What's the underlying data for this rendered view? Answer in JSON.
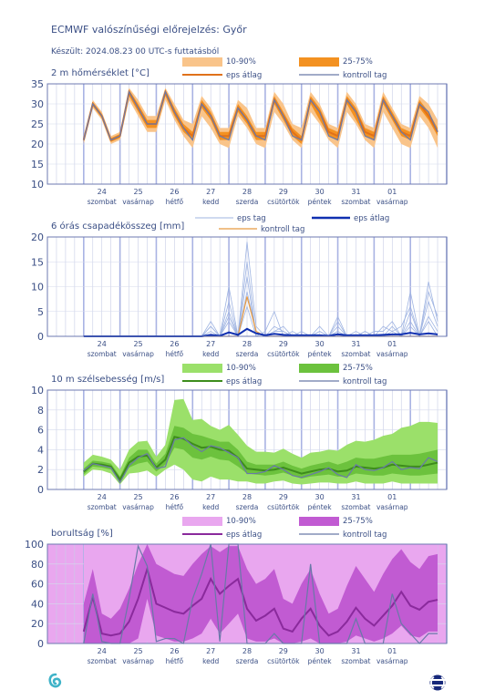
{
  "header": {
    "title": "ECMWF valószínűségi előrejelzés: Győr",
    "subtitle": "Készült: 2024.08.23 00 UTC-s futtatásból"
  },
  "x_axis": {
    "days": [
      "24",
      "25",
      "26",
      "27",
      "28",
      "29",
      "30",
      "31",
      "01"
    ],
    "weekdays": [
      "szombat",
      "vasárnap",
      "hétfő",
      "kedd",
      "szerda",
      "csütörtök",
      "péntek",
      "szombat",
      "vasárnap"
    ]
  },
  "colors": {
    "temp_band_outer": "#f9c48a",
    "temp_band_inner": "#f39121",
    "temp_mean": "#e0711a",
    "control": "#6979a8",
    "precip_member": "#9fb4e2",
    "precip_mean": "#1030b0",
    "precip_control": "#e89a40",
    "wind_band_outer": "#9be06a",
    "wind_band_inner": "#6cc23d",
    "wind_mean": "#3d8c1c",
    "cloud_band_outer": "#e9a7ef",
    "cloud_band_inner": "#c15bd2",
    "cloud_mean": "#8a2a9c",
    "axis_text": "#3b4f85",
    "grid": "#c7cde6"
  },
  "chart_data": [
    {
      "type": "area",
      "title": "2 m hőmérséklet [°C]",
      "ylim": [
        10,
        35
      ],
      "yticks": [
        10,
        15,
        20,
        25,
        30,
        35
      ],
      "legend": {
        "p10_90": "10-90%",
        "p25_75": "25-75%",
        "mean": "eps átlag",
        "control": "kontroll tag"
      },
      "x_hours": [
        0,
        6,
        12,
        18,
        24,
        30,
        36,
        42,
        48,
        54,
        60,
        66,
        72,
        78,
        84,
        90,
        96,
        102,
        108,
        114,
        120,
        126,
        132,
        138,
        144,
        150,
        156,
        162,
        168,
        174,
        180,
        186,
        192,
        198,
        204,
        210,
        216,
        222,
        228,
        234
      ],
      "mean": [
        21,
        30,
        27,
        21,
        22,
        33,
        29,
        25,
        25,
        33,
        28,
        24,
        22,
        30,
        27,
        22,
        22,
        29,
        26,
        22,
        22,
        31,
        27,
        23,
        21,
        31,
        28,
        23,
        22,
        31,
        28,
        23,
        22,
        31,
        27,
        23,
        22,
        30,
        27,
        23
      ],
      "p10": [
        20,
        29,
        26,
        20,
        21,
        31,
        27,
        23,
        23,
        31,
        26,
        22,
        19,
        27,
        24,
        20,
        19,
        27,
        24,
        20,
        19,
        28,
        25,
        21,
        19,
        28,
        25,
        21,
        19,
        28,
        25,
        21,
        19,
        28,
        24,
        20,
        19,
        27,
        24,
        19
      ],
      "p90": [
        22,
        31,
        28,
        22,
        23,
        34,
        31,
        27,
        27,
        34,
        30,
        26,
        25,
        32,
        29,
        24,
        24,
        31,
        29,
        24,
        24,
        33,
        30,
        25,
        24,
        33,
        30,
        25,
        24,
        33,
        30,
        25,
        24,
        33,
        29,
        25,
        24,
        32,
        30,
        26
      ],
      "p25": [
        20.5,
        29.5,
        26.5,
        20.5,
        21.5,
        32,
        28,
        24,
        24,
        32,
        27,
        23,
        21,
        29,
        26,
        21,
        21,
        28,
        25,
        21,
        21,
        30,
        26,
        22,
        20,
        30,
        26,
        22,
        21,
        30,
        26,
        22,
        21,
        30,
        26,
        22,
        21,
        29,
        26,
        22
      ],
      "p75": [
        21.5,
        30.5,
        27.5,
        21.5,
        22.5,
        33.5,
        30,
        26,
        26,
        33.5,
        29,
        25,
        23,
        31,
        28,
        23,
        23,
        30,
        27,
        23,
        23,
        32,
        28,
        24,
        22,
        32,
        29,
        24,
        23,
        32,
        29,
        24,
        23,
        32,
        28,
        24,
        23,
        31,
        28,
        24
      ],
      "control": [
        21,
        30,
        27,
        21,
        22,
        33,
        29,
        25,
        25,
        33,
        28,
        24,
        21,
        30,
        27,
        22,
        21,
        29,
        26,
        22,
        21,
        31,
        27,
        22,
        21,
        31,
        28,
        22,
        21,
        31,
        28,
        22,
        21,
        31,
        27,
        23,
        21,
        30,
        28,
        23
      ]
    },
    {
      "type": "line",
      "title": "6 órás csapadékösszeg [mm]",
      "ylim": [
        0,
        20
      ],
      "yticks": [
        0,
        5,
        10,
        15,
        20
      ],
      "legend": {
        "member": "eps tag",
        "mean": "eps átlag",
        "control": "kontroll tag"
      },
      "x_hours": [
        0,
        6,
        12,
        18,
        24,
        30,
        36,
        42,
        48,
        54,
        60,
        66,
        72,
        78,
        84,
        90,
        96,
        102,
        108,
        114,
        120,
        126,
        132,
        138,
        144,
        150,
        156,
        162,
        168,
        174,
        180,
        186,
        192,
        198,
        204,
        210,
        216,
        222,
        228,
        234
      ],
      "members": [
        [
          0,
          0,
          0,
          0,
          0,
          0,
          0,
          0,
          0,
          0,
          0,
          0,
          0,
          0,
          2,
          0,
          5,
          0,
          19,
          2,
          0,
          1,
          2,
          0,
          0,
          0,
          0,
          0,
          3,
          0,
          0,
          1,
          0,
          2,
          1,
          2,
          6,
          0,
          11,
          3
        ],
        [
          0,
          0,
          0,
          0,
          0,
          0,
          0,
          0,
          0,
          0,
          0,
          0,
          0,
          0,
          3,
          0,
          10,
          0,
          15,
          0,
          1,
          5,
          0,
          0,
          1,
          0,
          1,
          0,
          1,
          0,
          0,
          0,
          0,
          0,
          2,
          0,
          9,
          0,
          7,
          2
        ],
        [
          0,
          0,
          0,
          0,
          0,
          0,
          0,
          0,
          0,
          0,
          0,
          0,
          0,
          0,
          1,
          0,
          7,
          0,
          12,
          0,
          0,
          2,
          1,
          0,
          0,
          0,
          2,
          0,
          4,
          0,
          1,
          0,
          1,
          1,
          3,
          0,
          3,
          0,
          9,
          4
        ],
        [
          0,
          0,
          0,
          0,
          0,
          0,
          0,
          0,
          0,
          0,
          0,
          0,
          0,
          0,
          0,
          0,
          3,
          0,
          9,
          1,
          0,
          0,
          0,
          1,
          0,
          0,
          0,
          0,
          2,
          0,
          0,
          0,
          0,
          0,
          1,
          0,
          5,
          0,
          4,
          1
        ],
        [
          0,
          0,
          0,
          0,
          0,
          0,
          0,
          0,
          0,
          0,
          0,
          0,
          0,
          0,
          2,
          0,
          4,
          0,
          6,
          0,
          0,
          1,
          1,
          0,
          0,
          0,
          1,
          0,
          1,
          0,
          0,
          1,
          0,
          0,
          0,
          0,
          2,
          0,
          3,
          0
        ]
      ],
      "mean": [
        0,
        0,
        0,
        0,
        0,
        0,
        0,
        0,
        0,
        0,
        0,
        0,
        0,
        0,
        0.3,
        0.1,
        0.8,
        0.3,
        1.5,
        0.6,
        0.2,
        0.5,
        0.3,
        0.2,
        0.2,
        0.2,
        0.2,
        0.1,
        0.4,
        0.2,
        0.2,
        0.2,
        0.2,
        0.3,
        0.4,
        0.4,
        0.7,
        0.4,
        0.6,
        0.4
      ],
      "control": [
        0,
        0,
        0,
        0,
        0,
        0,
        0,
        0,
        0,
        0,
        0,
        0,
        0,
        0,
        0,
        0,
        0,
        0,
        8,
        1,
        0,
        0,
        0,
        0,
        0,
        0,
        0,
        0,
        0,
        0,
        0,
        0,
        0,
        0,
        0,
        0,
        0,
        0,
        0,
        0
      ]
    },
    {
      "type": "area",
      "title": "10 m szélsebesség [m/s]",
      "ylim": [
        0,
        10
      ],
      "yticks": [
        0,
        2,
        4,
        6,
        8,
        10
      ],
      "legend": {
        "p10_90": "10-90%",
        "p25_75": "25-75%",
        "mean": "eps átlag",
        "control": "kontroll tag"
      },
      "x_hours": [
        0,
        6,
        12,
        18,
        24,
        30,
        36,
        42,
        48,
        54,
        60,
        66,
        72,
        78,
        84,
        90,
        96,
        102,
        108,
        114,
        120,
        126,
        132,
        138,
        144,
        150,
        156,
        162,
        168,
        174,
        180,
        186,
        192,
        198,
        204,
        210,
        216,
        222,
        228,
        234
      ],
      "mean": [
        1.8,
        2.6,
        2.5,
        2.3,
        1.0,
        2.7,
        3.3,
        3.4,
        2.2,
        3.0,
        5.3,
        5.1,
        4.6,
        4.2,
        4.3,
        4.0,
        3.9,
        3.2,
        2.1,
        2.0,
        1.9,
        2.0,
        2.2,
        1.9,
        1.6,
        1.8,
        2.0,
        2.1,
        1.8,
        1.9,
        2.3,
        2.2,
        2.1,
        2.2,
        2.5,
        2.4,
        2.3,
        2.3,
        2.5,
        2.7
      ],
      "p10": [
        1.3,
        2.0,
        1.9,
        1.6,
        0.5,
        1.6,
        1.7,
        1.9,
        1.3,
        2.0,
        2.5,
        2.0,
        1.0,
        0.8,
        1.3,
        1.0,
        1.0,
        0.8,
        0.8,
        0.6,
        0.6,
        0.8,
        0.9,
        0.6,
        0.5,
        0.6,
        0.7,
        0.7,
        0.6,
        0.6,
        0.8,
        0.6,
        0.6,
        0.6,
        0.8,
        0.6,
        0.6,
        0.6,
        0.6,
        0.6
      ],
      "p90": [
        2.7,
        3.5,
        3.3,
        3.0,
        2.0,
        4.0,
        4.8,
        4.9,
        3.3,
        4.5,
        9.0,
        9.1,
        7.0,
        7.1,
        6.4,
        6.0,
        6.5,
        5.5,
        4.4,
        3.8,
        3.8,
        3.7,
        4.1,
        3.6,
        3.2,
        3.7,
        3.8,
        4.0,
        3.9,
        4.5,
        4.9,
        4.8,
        5.0,
        5.4,
        5.6,
        6.2,
        6.4,
        6.8,
        6.8,
        6.7
      ],
      "p25": [
        1.5,
        2.3,
        2.2,
        2.0,
        0.8,
        2.2,
        2.6,
        2.8,
        1.8,
        2.5,
        4.2,
        4.0,
        3.2,
        3.0,
        3.3,
        3.0,
        2.9,
        2.3,
        1.6,
        1.5,
        1.4,
        1.5,
        1.7,
        1.4,
        1.1,
        1.3,
        1.4,
        1.5,
        1.3,
        1.3,
        1.6,
        1.5,
        1.4,
        1.4,
        1.6,
        1.5,
        1.4,
        1.4,
        1.5,
        1.6
      ],
      "p75": [
        2.1,
        2.9,
        2.8,
        2.6,
        1.3,
        3.2,
        4.0,
        4.0,
        2.6,
        3.6,
        6.4,
        6.2,
        5.6,
        5.4,
        5.1,
        4.8,
        4.8,
        4.0,
        2.8,
        2.5,
        2.5,
        2.5,
        2.8,
        2.4,
        2.1,
        2.4,
        2.6,
        2.8,
        2.5,
        2.8,
        3.2,
        3.1,
        3.1,
        3.3,
        3.5,
        3.5,
        3.5,
        3.6,
        3.8,
        4.0
      ],
      "control": [
        1.9,
        2.6,
        2.4,
        2.2,
        0.7,
        2.4,
        3.2,
        3.6,
        2.1,
        2.3,
        5.0,
        5.2,
        4.4,
        3.8,
        4.4,
        4.2,
        3.7,
        3.2,
        1.6,
        1.6,
        1.8,
        2.4,
        2.0,
        1.4,
        1.2,
        1.5,
        1.8,
        2.2,
        1.5,
        1.2,
        2.5,
        2.0,
        1.9,
        2.2,
        2.8,
        2.0,
        2.2,
        2.1,
        3.2,
        2.8
      ]
    },
    {
      "type": "area",
      "title": "borultság [%]",
      "ylim": [
        0,
        100
      ],
      "yticks": [
        0,
        20,
        40,
        60,
        80,
        100
      ],
      "legend": {
        "p10_90": "10-90%",
        "p25_75": "25-75%",
        "mean": "eps átlag",
        "control": "kontroll tag"
      },
      "x_hours": [
        0,
        6,
        12,
        18,
        24,
        30,
        36,
        42,
        48,
        54,
        60,
        66,
        72,
        78,
        84,
        90,
        96,
        102,
        108,
        114,
        120,
        126,
        132,
        138,
        144,
        150,
        156,
        162,
        168,
        174,
        180,
        186,
        192,
        198,
        204,
        210,
        216,
        222,
        228,
        234
      ],
      "mean": [
        12,
        47,
        10,
        8,
        10,
        22,
        45,
        75,
        40,
        36,
        32,
        30,
        38,
        45,
        65,
        50,
        58,
        65,
        35,
        23,
        28,
        35,
        15,
        12,
        25,
        35,
        18,
        8,
        12,
        22,
        36,
        25,
        18,
        28,
        38,
        52,
        38,
        34,
        42,
        44
      ],
      "p10": [
        0,
        0,
        0,
        0,
        0,
        0,
        0,
        2,
        0,
        0,
        0,
        0,
        0,
        0,
        0,
        0,
        0,
        0,
        0,
        0,
        0,
        0,
        0,
        0,
        0,
        0,
        0,
        0,
        0,
        0,
        0,
        0,
        0,
        0,
        0,
        0,
        0,
        0,
        0,
        0
      ],
      "p90": [
        100,
        100,
        100,
        100,
        100,
        100,
        100,
        100,
        100,
        100,
        100,
        100,
        100,
        100,
        100,
        100,
        100,
        100,
        100,
        100,
        100,
        100,
        100,
        100,
        100,
        100,
        100,
        100,
        100,
        100,
        100,
        100,
        100,
        100,
        100,
        100,
        100,
        100,
        100,
        100
      ],
      "p25": [
        0,
        0,
        0,
        0,
        0,
        0,
        5,
        45,
        8,
        5,
        2,
        2,
        5,
        10,
        25,
        10,
        20,
        30,
        5,
        2,
        2,
        5,
        0,
        0,
        2,
        5,
        0,
        0,
        0,
        2,
        8,
        5,
        2,
        5,
        10,
        18,
        8,
        6,
        12,
        12
      ],
      "p75": [
        40,
        75,
        30,
        25,
        35,
        55,
        80,
        100,
        80,
        75,
        70,
        68,
        80,
        90,
        98,
        92,
        98,
        98,
        75,
        60,
        65,
        75,
        45,
        40,
        60,
        75,
        50,
        30,
        35,
        58,
        78,
        65,
        52,
        70,
        85,
        95,
        82,
        75,
        88,
        90
      ],
      "control": [
        0,
        50,
        2,
        0,
        0,
        45,
        98,
        78,
        2,
        5,
        5,
        0,
        45,
        70,
        100,
        2,
        100,
        100,
        0,
        0,
        0,
        10,
        0,
        0,
        0,
        80,
        0,
        0,
        0,
        0,
        25,
        0,
        0,
        0,
        50,
        20,
        10,
        0,
        10,
        10
      ]
    }
  ]
}
